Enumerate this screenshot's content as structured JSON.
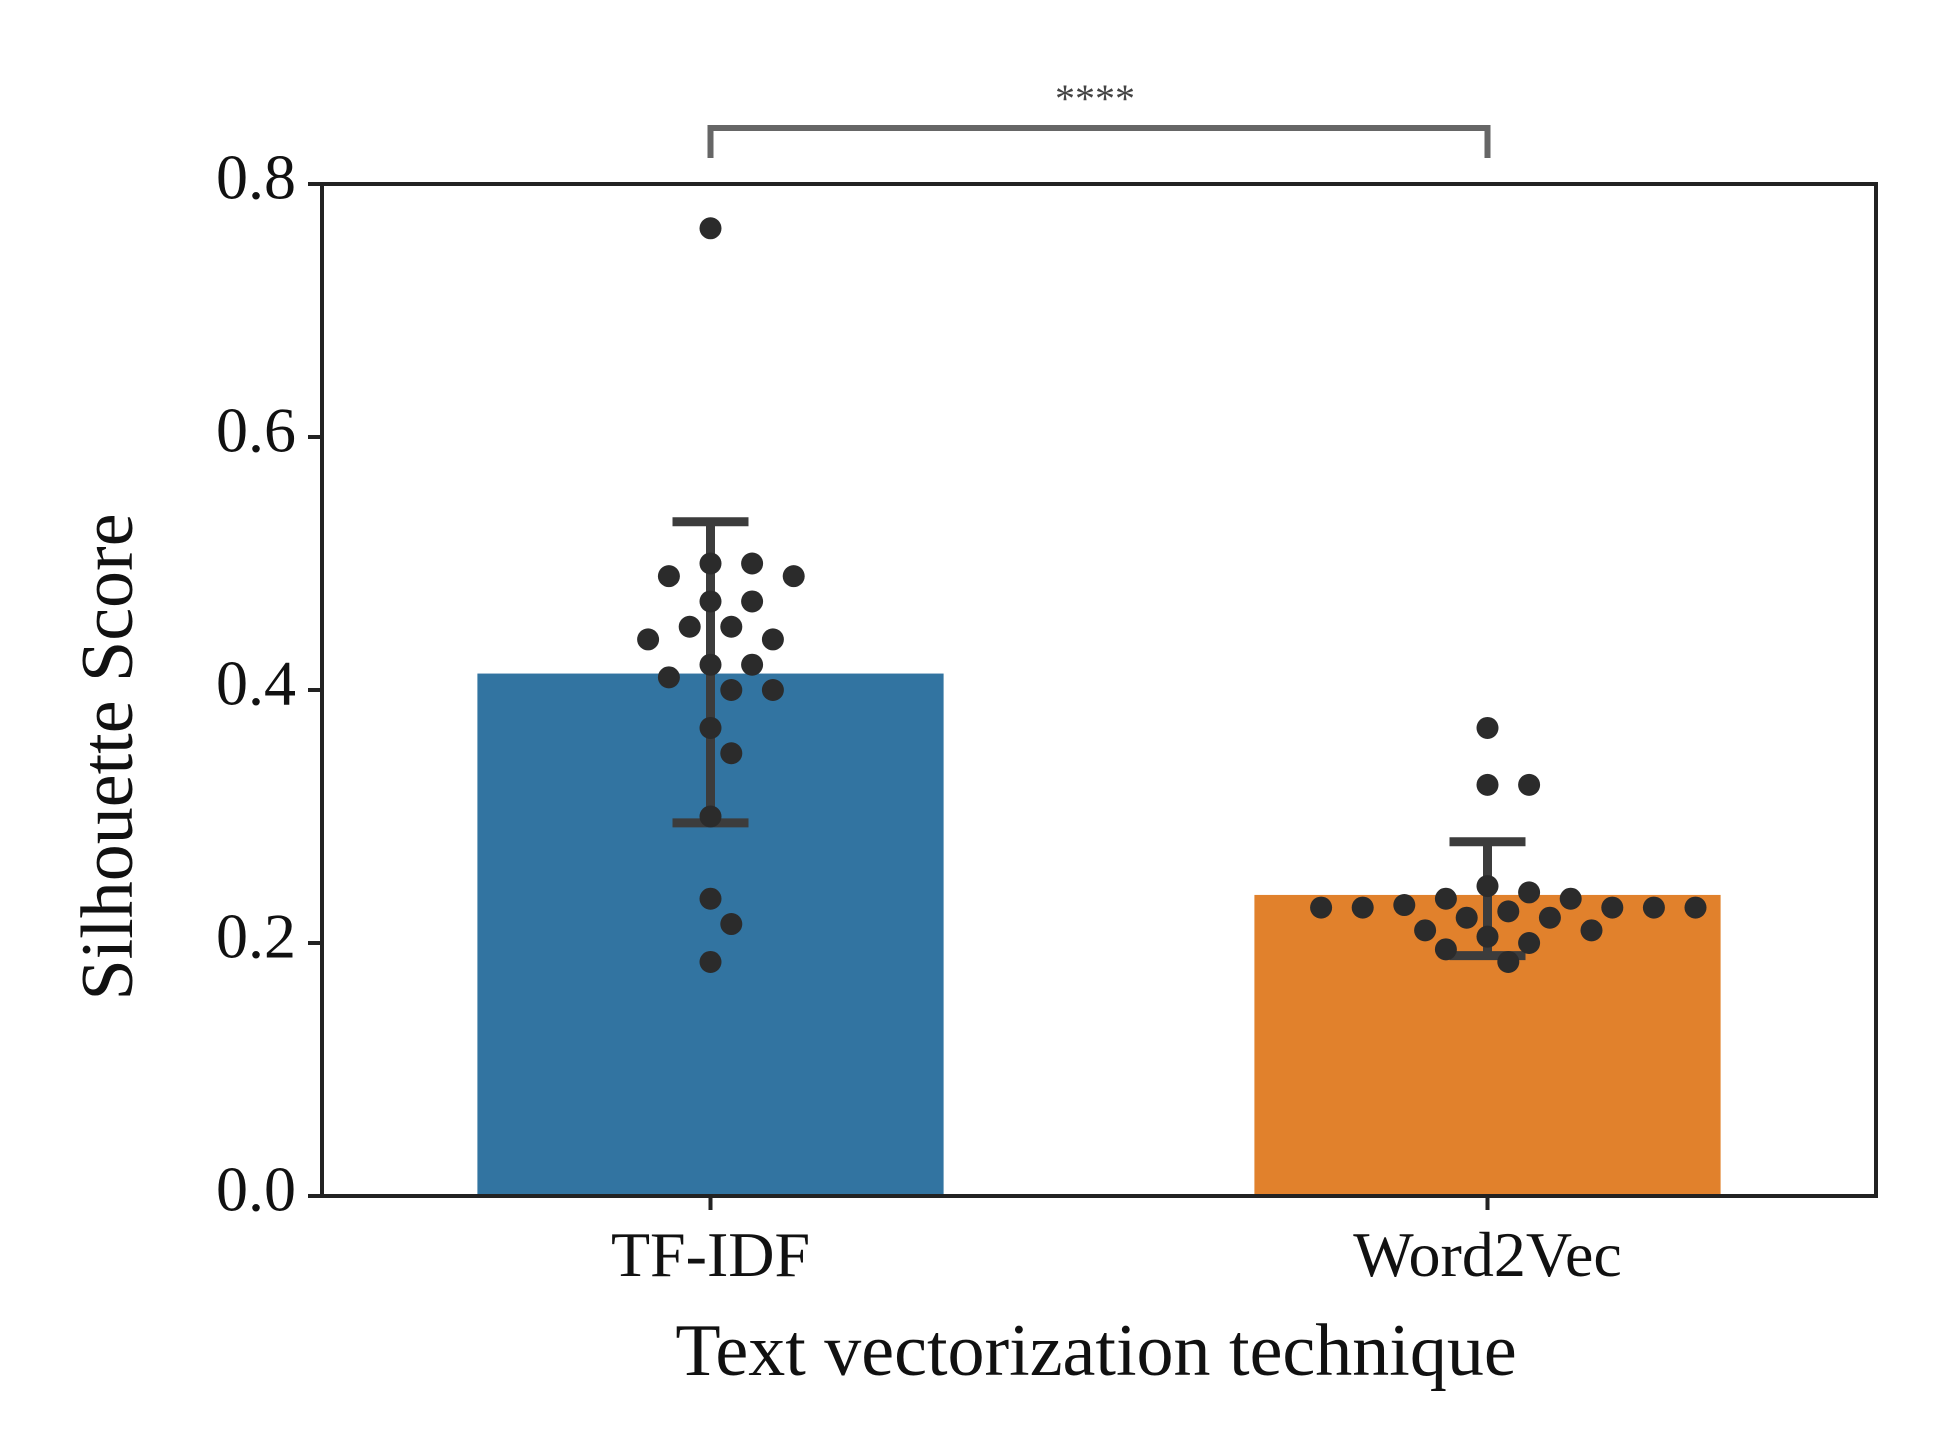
{
  "chart_data": {
    "type": "bar",
    "xlabel": "Text vectorization technique",
    "ylabel": "Silhouette Score",
    "ylim": [
      0,
      0.8
    ],
    "yticks": [
      "0.0",
      "0.2",
      "0.4",
      "0.6",
      "0.8"
    ],
    "categories": [
      "TF-IDF",
      "Word2Vec"
    ],
    "values": [
      0.413,
      0.238
    ],
    "error_bars": [
      {
        "low": 0.295,
        "high": 0.533
      },
      {
        "low": 0.19,
        "high": 0.28
      }
    ],
    "points": [
      [
        0.765,
        0.5,
        0.5,
        0.49,
        0.49,
        0.47,
        0.47,
        0.45,
        0.45,
        0.44,
        0.44,
        0.42,
        0.42,
        0.41,
        0.4,
        0.4,
        0.37,
        0.35,
        0.3,
        0.235,
        0.215,
        0.185
      ],
      [
        0.37,
        0.325,
        0.325,
        0.245,
        0.24,
        0.235,
        0.235,
        0.23,
        0.228,
        0.228,
        0.228,
        0.228,
        0.228,
        0.225,
        0.22,
        0.22,
        0.21,
        0.21,
        0.205,
        0.2,
        0.195,
        0.185
      ]
    ],
    "significance": "****",
    "grid": false,
    "legend": "none"
  },
  "colors": {
    "bars": [
      "#3274a1",
      "#e1812c"
    ],
    "points": "#2b2b2b",
    "errorbar": "#3c3c3c",
    "bracket": "#666666",
    "axis": "#222222"
  }
}
